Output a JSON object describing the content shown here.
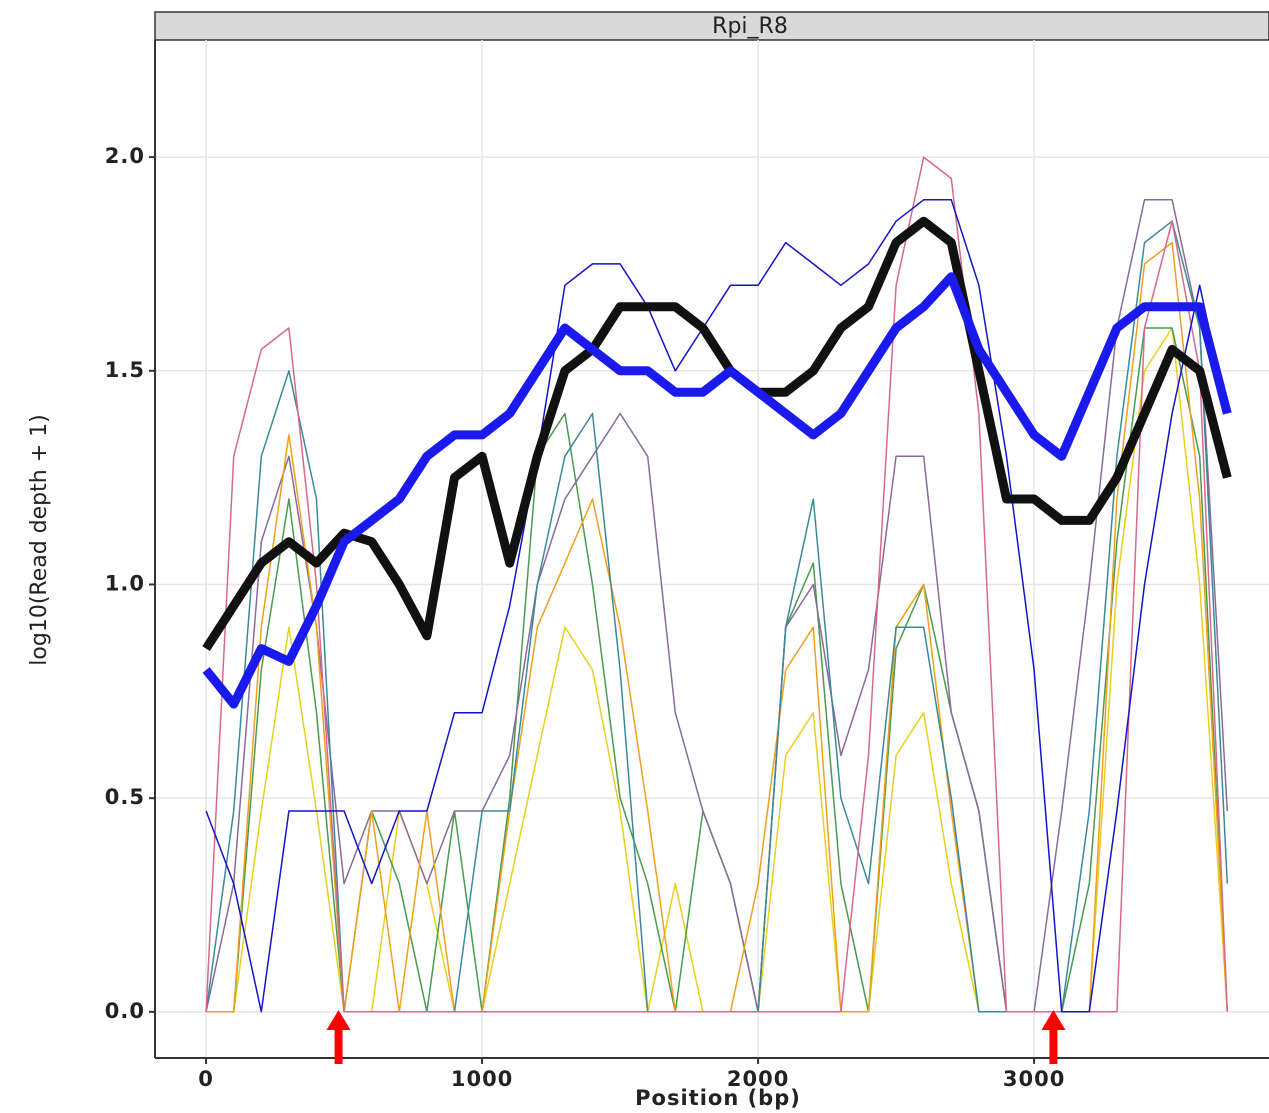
{
  "chart_data": {
    "type": "line",
    "title": "Rpi_R8",
    "x_label": "Position (bp)",
    "y_label": "log10(Read depth + 1)",
    "xlim": [
      -185,
      3851
    ],
    "ylim": [
      -0.108,
      2.274
    ],
    "xticks": [
      0,
      1000,
      2000,
      3000
    ],
    "yticks": [
      {
        "value": 0,
        "label": "0.0"
      },
      {
        "value": 0.5,
        "label": "0.5"
      },
      {
        "value": 1,
        "label": "1.0"
      },
      {
        "value": 1.5,
        "label": "1.5"
      },
      {
        "value": 2,
        "label": "2.0"
      }
    ],
    "grid": true,
    "markers": [
      480,
      3070
    ],
    "marker_color": "#ff0000",
    "x": [
      0,
      100,
      200,
      300,
      400,
      500,
      600,
      700,
      800,
      900,
      1000,
      1100,
      1200,
      1300,
      1400,
      1500,
      1600,
      1700,
      1800,
      1900,
      2000,
      2100,
      2200,
      2300,
      2400,
      2500,
      2600,
      2700,
      2800,
      2900,
      3000,
      3100,
      3200,
      3300,
      3400,
      3500,
      3600,
      3700
    ],
    "series": [
      {
        "color": "#e8d020",
        "width": 1.5,
        "values": [
          0,
          0,
          0.47,
          0.9,
          0.47,
          0,
          0,
          0.47,
          0.3,
          0,
          0,
          0.3,
          0.6,
          0.9,
          0.8,
          0.47,
          0,
          0.3,
          0,
          0,
          0,
          0.6,
          0.7,
          0,
          0,
          0.6,
          0.7,
          0.3,
          0,
          0,
          0,
          0,
          0,
          1.0,
          1.5,
          1.6,
          1.0,
          0
        ]
      },
      {
        "color": "#4a9a50",
        "width": 1.5,
        "values": [
          0,
          0,
          0.8,
          1.2,
          0.7,
          0,
          0.47,
          0.3,
          0,
          0.47,
          0,
          0.5,
          1.3,
          1.4,
          1.0,
          0.5,
          0.3,
          0,
          0.47,
          0.3,
          0,
          0.9,
          1.05,
          0.3,
          0,
          0.85,
          1.0,
          0.7,
          0.47,
          0,
          0,
          0,
          0.3,
          1.1,
          1.6,
          1.6,
          1.3,
          0
        ]
      },
      {
        "color": "#8a6a9a",
        "width": 1.5,
        "values": [
          0,
          0.3,
          1.1,
          1.3,
          0.9,
          0.3,
          0.47,
          0.47,
          0.3,
          0.47,
          0.47,
          0.6,
          1.0,
          1.2,
          1.3,
          1.4,
          1.3,
          0.7,
          0.47,
          0.3,
          0,
          0.9,
          1.0,
          0.6,
          0.8,
          1.3,
          1.3,
          0.7,
          0.47,
          0,
          0,
          0.47,
          1.0,
          1.6,
          1.9,
          1.9,
          1.6,
          0.47
        ]
      },
      {
        "color": "#f0a020",
        "width": 1.5,
        "values": [
          0,
          0,
          0.9,
          1.35,
          0.9,
          0,
          0.47,
          0,
          0.47,
          0,
          0,
          0.47,
          0.9,
          1.05,
          1.2,
          0.9,
          0.47,
          0,
          0,
          0,
          0.3,
          0.8,
          0.9,
          0,
          0,
          0.9,
          1.0,
          0.47,
          0,
          0,
          0,
          0,
          0,
          1.2,
          1.75,
          1.8,
          1.2,
          0
        ]
      },
      {
        "color": "#3a8a9a",
        "width": 1.5,
        "values": [
          0,
          0.47,
          1.3,
          1.5,
          1.2,
          0,
          0,
          0,
          0,
          0,
          0.47,
          0.47,
          1.0,
          1.3,
          1.4,
          0.8,
          0,
          0,
          0,
          0,
          0,
          0.9,
          1.2,
          0.5,
          0.3,
          0.9,
          0.9,
          0.5,
          0,
          0,
          0,
          0,
          0.47,
          1.3,
          1.8,
          1.85,
          1.6,
          0.3
        ]
      },
      {
        "color": "#d66a8a",
        "width": 1.5,
        "values": [
          0,
          1.3,
          1.55,
          1.6,
          1.0,
          0,
          0,
          0,
          0,
          0,
          0,
          0,
          0,
          0,
          0,
          0,
          0,
          0,
          0,
          0,
          0,
          0,
          0,
          0,
          0.6,
          1.7,
          2.0,
          1.95,
          1.4,
          0,
          0,
          0,
          0,
          0,
          1.6,
          1.85,
          1.5,
          0
        ]
      },
      {
        "color": "#1414c8",
        "width": 1.5,
        "values": [
          0.47,
          0.3,
          0,
          0.47,
          0.47,
          0.47,
          0.3,
          0.47,
          0.47,
          0.7,
          0.7,
          0.95,
          1.3,
          1.7,
          1.75,
          1.75,
          1.65,
          1.5,
          1.6,
          1.7,
          1.7,
          1.8,
          1.75,
          1.7,
          1.75,
          1.85,
          1.9,
          1.9,
          1.7,
          1.3,
          0.8,
          0,
          0,
          0.47,
          1.0,
          1.4,
          1.7,
          1.4
        ]
      },
      {
        "color": "#111111",
        "width": 9,
        "values": [
          0.85,
          0.95,
          1.05,
          1.1,
          1.05,
          1.12,
          1.1,
          1.0,
          0.88,
          1.25,
          1.3,
          1.05,
          1.3,
          1.5,
          1.55,
          1.65,
          1.65,
          1.65,
          1.6,
          1.5,
          1.45,
          1.45,
          1.5,
          1.6,
          1.65,
          1.8,
          1.85,
          1.8,
          1.5,
          1.2,
          1.2,
          1.15,
          1.15,
          1.25,
          1.4,
          1.55,
          1.5,
          1.25
        ]
      },
      {
        "color": "#1a1aee",
        "width": 9,
        "values": [
          0.8,
          0.72,
          0.85,
          0.82,
          0.95,
          1.1,
          1.15,
          1.2,
          1.3,
          1.35,
          1.35,
          1.4,
          1.5,
          1.6,
          1.55,
          1.5,
          1.5,
          1.45,
          1.45,
          1.5,
          1.45,
          1.4,
          1.35,
          1.4,
          1.5,
          1.6,
          1.65,
          1.72,
          1.55,
          1.45,
          1.35,
          1.3,
          1.45,
          1.6,
          1.65,
          1.65,
          1.65,
          1.4
        ]
      }
    ]
  }
}
